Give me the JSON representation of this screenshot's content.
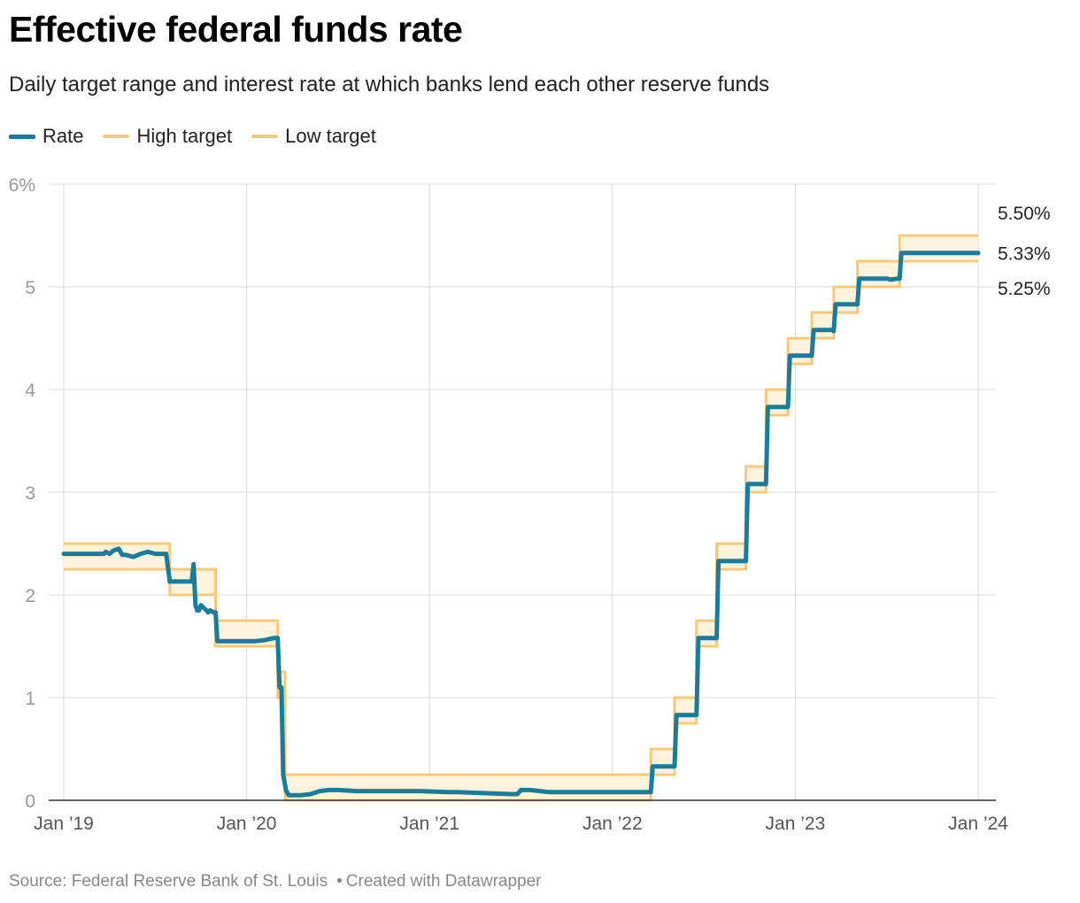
{
  "title": "Effective federal funds rate",
  "subtitle": "Daily target range and interest rate at which banks lend each other reserve funds",
  "legend": [
    {
      "label": "Rate",
      "color": "#1a7b9b"
    },
    {
      "label": "High target",
      "color": "#f8c97a"
    },
    {
      "label": "Low target",
      "color": "#f8c97a"
    }
  ],
  "footer": {
    "source": "Source: Federal Reserve Bank of St. Louis",
    "separator": "•",
    "credit": "Created with Datawrapper"
  },
  "chart_data": {
    "type": "line",
    "x_unit": "year",
    "xlim": [
      2019.0,
      2024.0
    ],
    "ylim": [
      0,
      6
    ],
    "y_ticks": [
      {
        "value": 6,
        "label": "6%"
      },
      {
        "value": 5,
        "label": "5"
      },
      {
        "value": 4,
        "label": "4"
      },
      {
        "value": 3,
        "label": "3"
      },
      {
        "value": 2,
        "label": "2"
      },
      {
        "value": 1,
        "label": "1"
      },
      {
        "value": 0,
        "label": "0"
      }
    ],
    "x_ticks": [
      {
        "value": 2019,
        "label": "Jan ’19"
      },
      {
        "value": 2020,
        "label": "Jan ’20"
      },
      {
        "value": 2021,
        "label": "Jan ’21"
      },
      {
        "value": 2022,
        "label": "Jan ’22"
      },
      {
        "value": 2023,
        "label": "Jan ’23"
      },
      {
        "value": 2024,
        "label": "Jan ’24"
      }
    ],
    "grid": true,
    "colors": {
      "rate": "#1a7b9b",
      "target": "#f8c97a",
      "band_fill": "#fdf3dc",
      "grid": "#e0e0e0",
      "axis": "#333333",
      "tick_label": "#999999"
    },
    "target_range": {
      "x": [
        2019.0,
        2019.58,
        2019.58,
        2019.83,
        2019.83,
        2020.17,
        2020.17,
        2020.21,
        2020.21,
        2022.21,
        2022.21,
        2022.34,
        2022.34,
        2022.46,
        2022.46,
        2022.57,
        2022.57,
        2022.73,
        2022.73,
        2022.84,
        2022.84,
        2022.96,
        2022.96,
        2023.09,
        2023.09,
        2023.21,
        2023.21,
        2023.34,
        2023.34,
        2023.57,
        2023.57,
        2024.0
      ],
      "high": [
        2.5,
        2.5,
        2.25,
        2.25,
        1.75,
        1.75,
        1.25,
        1.25,
        0.25,
        0.25,
        0.5,
        0.5,
        1.0,
        1.0,
        1.75,
        1.75,
        2.5,
        2.5,
        3.25,
        3.25,
        4.0,
        4.0,
        4.5,
        4.5,
        4.75,
        4.75,
        5.0,
        5.0,
        5.25,
        5.25,
        5.5,
        5.5
      ],
      "low": [
        2.25,
        2.25,
        2.0,
        2.0,
        1.5,
        1.5,
        1.0,
        1.0,
        0.0,
        0.0,
        0.25,
        0.25,
        0.75,
        0.75,
        1.5,
        1.5,
        2.25,
        2.25,
        3.0,
        3.0,
        3.75,
        3.75,
        4.25,
        4.25,
        4.5,
        4.5,
        4.75,
        4.75,
        5.0,
        5.0,
        5.25,
        5.25
      ]
    },
    "series": [
      {
        "name": "Rate",
        "x": [
          2019.0,
          2019.22,
          2019.23,
          2019.25,
          2019.27,
          2019.3,
          2019.32,
          2019.34,
          2019.38,
          2019.42,
          2019.46,
          2019.5,
          2019.53,
          2019.56,
          2019.58,
          2019.59,
          2019.6,
          2019.7,
          2019.71,
          2019.72,
          2019.73,
          2019.74,
          2019.75,
          2019.78,
          2019.79,
          2019.8,
          2019.82,
          2019.83,
          2019.84,
          2019.86,
          2019.9,
          2019.95,
          2020.0,
          2020.05,
          2020.1,
          2020.15,
          2020.17,
          2020.18,
          2020.19,
          2020.2,
          2020.21,
          2020.215,
          2020.22,
          2020.23,
          2020.25,
          2020.3,
          2020.35,
          2020.4,
          2020.45,
          2020.5,
          2020.6,
          2020.8,
          2020.95,
          2021.1,
          2021.15,
          2021.3,
          2021.45,
          2021.48,
          2021.5,
          2021.55,
          2021.65,
          2021.7,
          2021.8,
          2022.0,
          2022.21,
          2022.22,
          2022.34,
          2022.35,
          2022.46,
          2022.47,
          2022.57,
          2022.58,
          2022.73,
          2022.74,
          2022.84,
          2022.85,
          2022.96,
          2022.97,
          2023.09,
          2023.1,
          2023.2,
          2023.21,
          2023.22,
          2023.34,
          2023.35,
          2023.45,
          2023.5,
          2023.52,
          2023.56,
          2023.57,
          2023.58,
          2024.0
        ],
        "values": [
          2.4,
          2.4,
          2.42,
          2.4,
          2.43,
          2.45,
          2.39,
          2.39,
          2.37,
          2.4,
          2.42,
          2.4,
          2.4,
          2.4,
          2.13,
          2.13,
          2.13,
          2.13,
          2.3,
          1.9,
          1.85,
          1.85,
          1.9,
          1.85,
          1.83,
          1.85,
          1.83,
          1.83,
          1.55,
          1.55,
          1.55,
          1.55,
          1.55,
          1.55,
          1.56,
          1.58,
          1.58,
          1.1,
          1.1,
          0.25,
          0.15,
          0.1,
          0.08,
          0.05,
          0.05,
          0.05,
          0.06,
          0.09,
          0.1,
          0.1,
          0.09,
          0.09,
          0.09,
          0.08,
          0.08,
          0.07,
          0.06,
          0.06,
          0.1,
          0.1,
          0.08,
          0.08,
          0.08,
          0.08,
          0.08,
          0.33,
          0.33,
          0.83,
          0.83,
          1.58,
          1.58,
          2.33,
          2.33,
          3.08,
          3.08,
          3.83,
          3.83,
          4.33,
          4.33,
          4.58,
          4.58,
          4.57,
          4.83,
          4.83,
          5.08,
          5.08,
          5.08,
          5.07,
          5.08,
          5.08,
          5.33,
          5.33
        ]
      }
    ],
    "end_labels": [
      {
        "value": 5.5,
        "label": "5.50%"
      },
      {
        "value": 5.33,
        "label": "5.33%"
      },
      {
        "value": 5.25,
        "label": "5.25%"
      }
    ]
  }
}
